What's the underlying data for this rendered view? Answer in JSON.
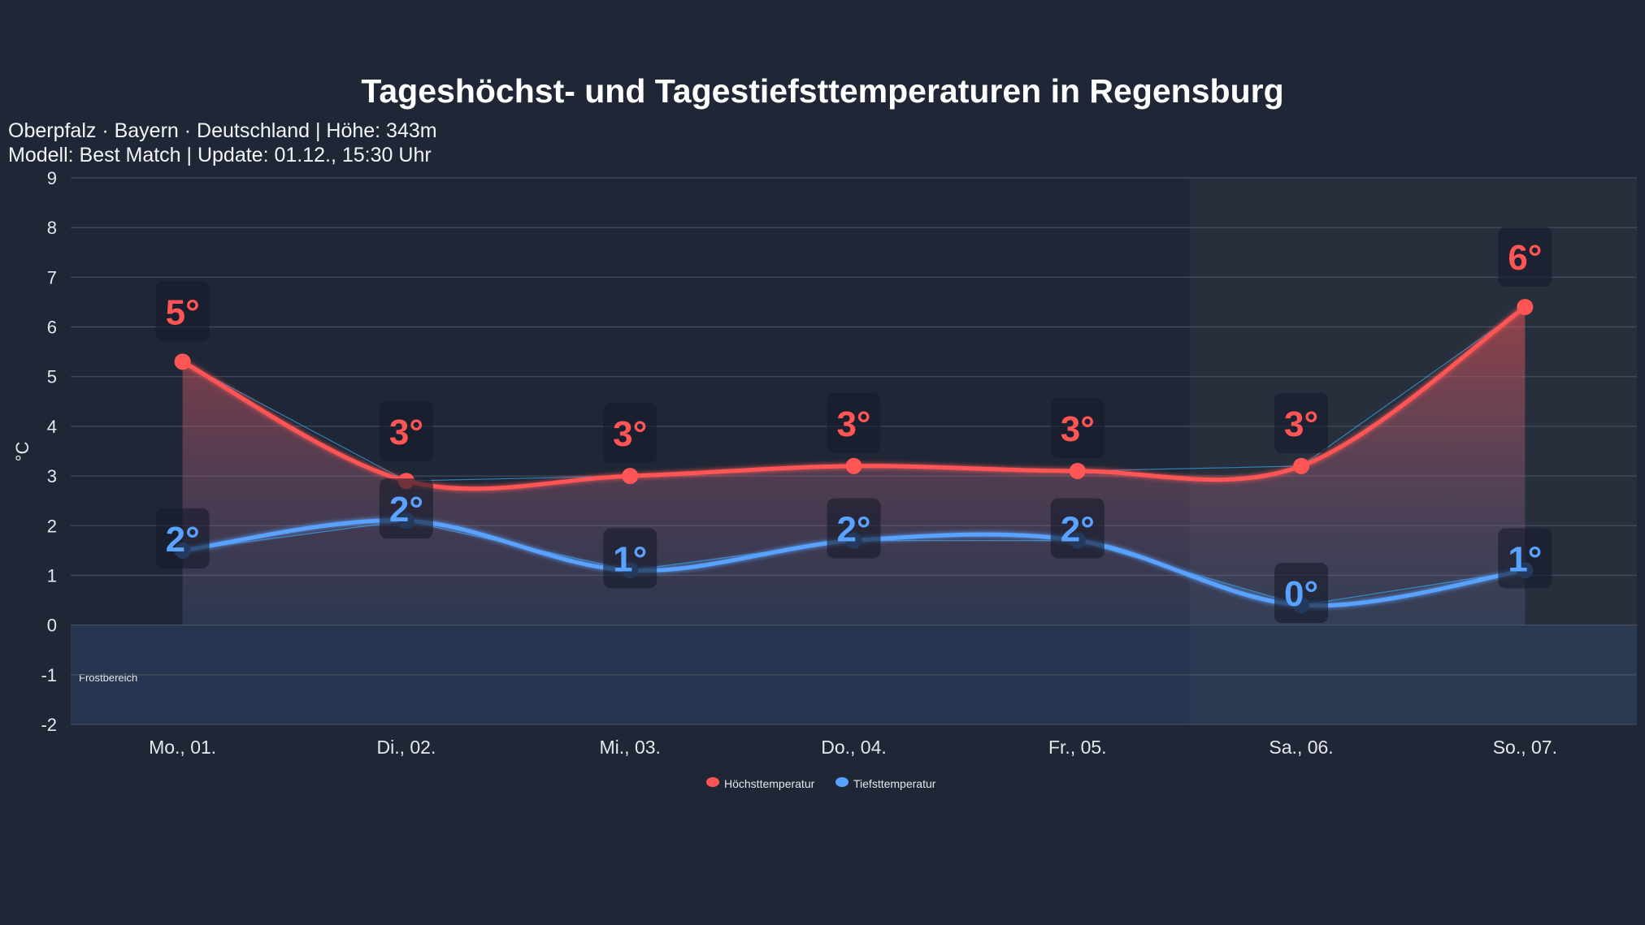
{
  "chart_data": {
    "type": "line",
    "title": "Tageshöchst- und Tagestiefsttemperaturen in Regensburg",
    "subtitle": [
      "Oberpfalz · Bayern · Deutschland | Höhe: 343m",
      "Modell: Best Match | Update: 01.12., 15:30 Uhr"
    ],
    "ylabel": "°C",
    "xlabel": "",
    "ylim": [
      -2,
      9
    ],
    "yticks": [
      "9",
      "8",
      "7",
      "6",
      "5",
      "4",
      "3",
      "2",
      "1",
      "0",
      "-1",
      "-2"
    ],
    "categories": [
      "Mo., 01.",
      "Di., 02.",
      "Mi., 03.",
      "Do., 04.",
      "Fr., 05.",
      "Sa., 06.",
      "So., 07."
    ],
    "series": [
      {
        "name": "Höchsttemperatur",
        "color": "#ff5555",
        "values": [
          5.3,
          2.9,
          3.0,
          3.2,
          3.1,
          3.2,
          6.4
        ],
        "labels": [
          "5°",
          "3°",
          "3°",
          "3°",
          "3°",
          "3°",
          "6°"
        ]
      },
      {
        "name": "Tiefsttemperatur",
        "color": "#5aa2ff",
        "values": [
          1.5,
          2.1,
          1.1,
          1.7,
          1.7,
          0.4,
          1.1
        ],
        "labels": [
          "2°",
          "2°",
          "1°",
          "2°",
          "2°",
          "0°",
          "1°"
        ]
      }
    ],
    "annotations": [
      {
        "text": "Frostbereich",
        "range": [
          -2,
          0
        ]
      }
    ],
    "weekend_shading": [
      "Sa., 06.",
      "So., 07."
    ],
    "grid": true,
    "legend": "bottom"
  }
}
